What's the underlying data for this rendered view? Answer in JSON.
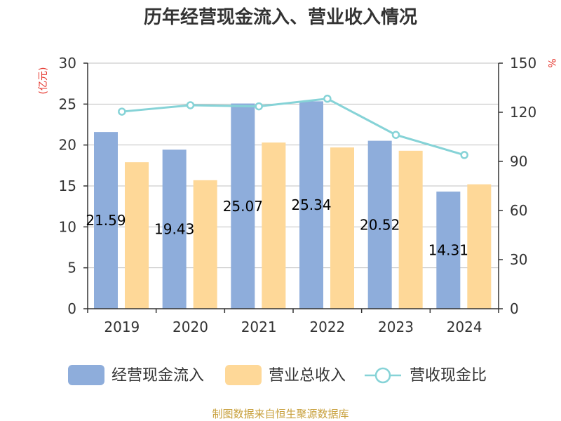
{
  "colors": {
    "bar_cashflow": "#8eaddb",
    "bar_revenue": "#fed898",
    "line_ratio": "#86d3d7",
    "grid": "#c0c0c0",
    "axis": "#333333",
    "unit_red": "#e5332a",
    "source": "#c8a03c"
  },
  "chart_data": {
    "type": "bar",
    "title": "历年经营现金流入、营业收入情况",
    "categories": [
      "2019",
      "2020",
      "2021",
      "2022",
      "2023",
      "2024"
    ],
    "left_axis": {
      "label": "(亿元)",
      "min": 0,
      "max": 30,
      "ticks": [
        "0",
        "5",
        "10",
        "15",
        "20",
        "25",
        "30"
      ]
    },
    "right_axis": {
      "label": "%",
      "min": 0,
      "max": 150,
      "ticks": [
        "0",
        "30",
        "60",
        "90",
        "120",
        "150"
      ]
    },
    "series": [
      {
        "name": "经营现金流入",
        "type": "bar",
        "axis": "left",
        "values": [
          21.59,
          19.43,
          25.07,
          25.34,
          20.52,
          14.31
        ],
        "labels": [
          "21.59",
          "19.43",
          "25.07",
          "25.34",
          "20.52",
          "14.31"
        ]
      },
      {
        "name": "营业总收入",
        "type": "bar",
        "axis": "left",
        "values": [
          17.9,
          15.7,
          20.3,
          19.7,
          19.3,
          15.2
        ]
      },
      {
        "name": "营收现金比",
        "type": "line",
        "axis": "right",
        "values": [
          120.4,
          124.3,
          123.6,
          128.3,
          106.2,
          93.9
        ]
      }
    ],
    "grid": true,
    "legend_position": "bottom"
  },
  "source_text": "制图数据来自恒生聚源数据库"
}
